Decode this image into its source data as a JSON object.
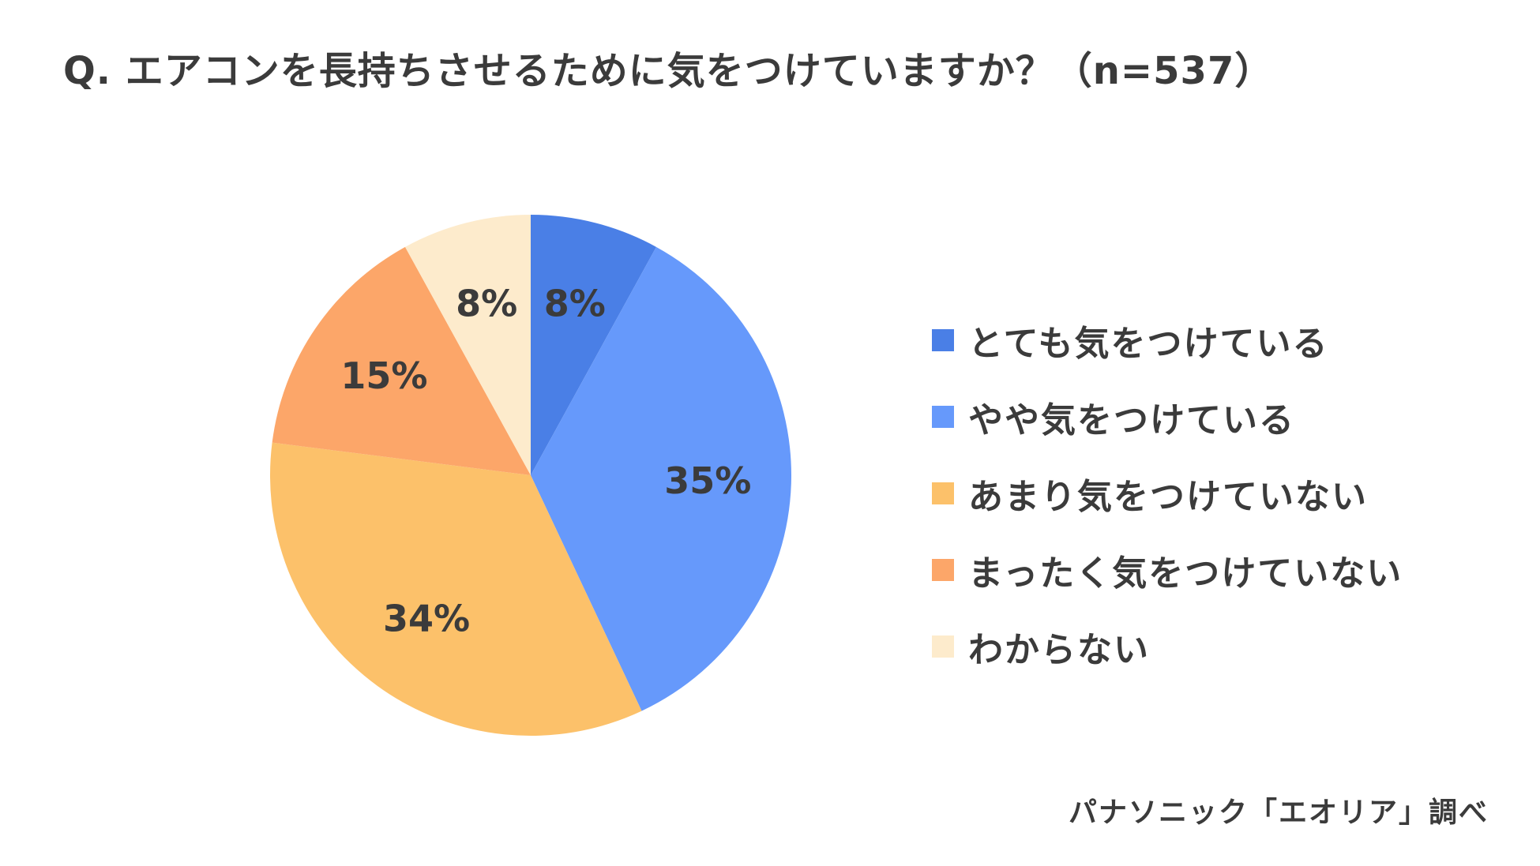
{
  "title": "Q. エアコンを長持ちさせるために気をつけていますか？（n=537）",
  "source": "パナソニック「エオリア」調べ",
  "chart_data": {
    "type": "pie",
    "title": "Q. エアコンを長持ちさせるために気をつけていますか？（n=537）",
    "n": 537,
    "start": "12 o'clock",
    "direction": "clockwise",
    "legend_position": "right",
    "categories": [
      "とても気をつけている",
      "やや気をつけている",
      "あまり気をつけていない",
      "まったく気をつけていない",
      "わからない"
    ],
    "values": [
      8,
      35,
      34,
      15,
      8
    ],
    "labels": [
      "8%",
      "35%",
      "34%",
      "15%",
      "8%"
    ],
    "colors": [
      "#4a7fe6",
      "#6699fb",
      "#fcc16a",
      "#fca669",
      "#fdebcc"
    ]
  }
}
